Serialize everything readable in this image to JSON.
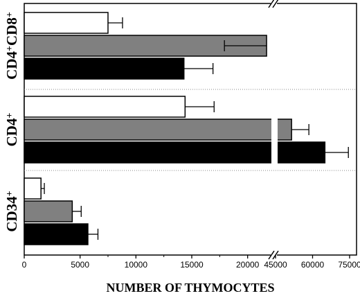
{
  "chart_data": {
    "type": "bar",
    "orientation": "horizontal",
    "xlabel": "NUMBER OF THYMOCYTES",
    "ylabel": "",
    "axis_break": {
      "from": 22500,
      "to": 45000
    },
    "xlim": [
      0,
      75000
    ],
    "xticks": [
      0,
      5000,
      10000,
      15000,
      20000,
      45000,
      60000,
      75000
    ],
    "xtick_labels": [
      "0",
      "5000",
      "10000",
      "15000",
      "20000",
      "45000",
      "60000",
      "75000"
    ],
    "groups": [
      {
        "label_main": "CD4",
        "label_sup1": "+",
        "label_mid": "CD8",
        "label_sup2": "+",
        "bars": [
          {
            "fill": "#ffffff",
            "value": 7500,
            "error": 1300
          },
          {
            "fill": "#808080",
            "value": 21700,
            "error": 2600
          },
          {
            "fill": "#000000",
            "value": 14300,
            "error": 2600
          }
        ]
      },
      {
        "label_main": "CD4",
        "label_sup1": "+",
        "label_mid": "",
        "label_sup2": "",
        "bars": [
          {
            "fill": "#ffffff",
            "value": 14400,
            "error": 2600
          },
          {
            "fill": "#808080",
            "value": 51500,
            "error": 7000
          },
          {
            "fill": "#000000",
            "value": 65000,
            "error": 9500
          }
        ]
      },
      {
        "label_main": "CD34",
        "label_sup1": "+",
        "label_mid": "",
        "label_sup2": "",
        "bars": [
          {
            "fill": "#ffffff",
            "value": 1500,
            "error": 300
          },
          {
            "fill": "#808080",
            "value": 4300,
            "error": 800
          },
          {
            "fill": "#000000",
            "value": 5700,
            "error": 900
          }
        ]
      }
    ]
  }
}
